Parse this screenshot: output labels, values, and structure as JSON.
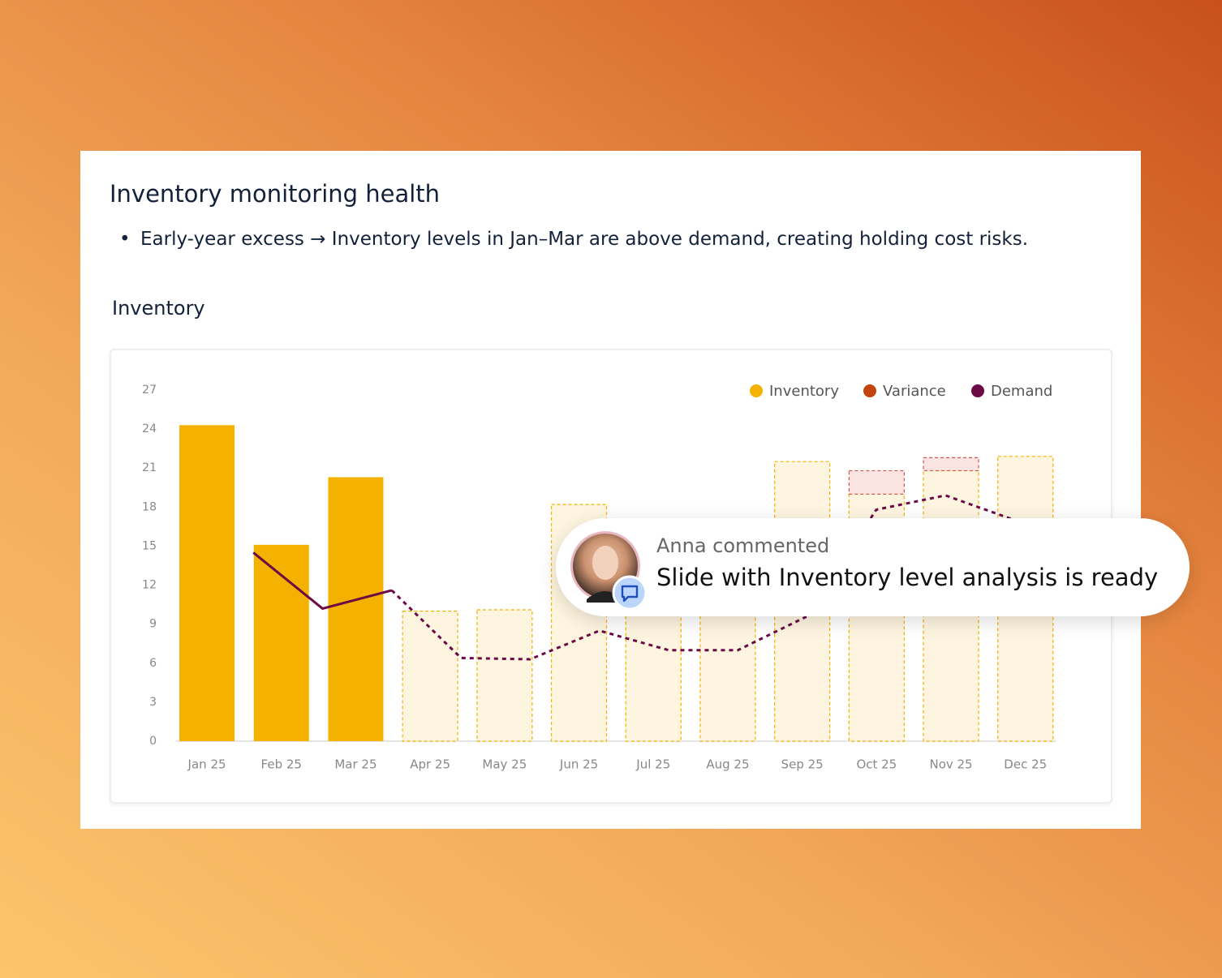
{
  "header": {
    "title": "Inventory monitoring health",
    "bullet": "Early-year excess → Inventory levels in Jan–Mar are above demand, creating holding cost risks."
  },
  "chart_data": {
    "type": "bar",
    "title": "Inventory",
    "categories": [
      "Jan 25",
      "Feb 25",
      "Mar 25",
      "Apr 25",
      "May 25",
      "Jun 25",
      "Jul 25",
      "Aug 25",
      "Sep 25",
      "Oct 25",
      "Nov 25",
      "Dec 25"
    ],
    "series": [
      {
        "name": "Inventory",
        "color": "#f5b100",
        "values": [
          24.3,
          15.1,
          20.3,
          10.0,
          10.1,
          18.2,
          14.0,
          14.0,
          21.5,
          19.0,
          20.8,
          21.9
        ]
      },
      {
        "name": "Variance",
        "color": "#c2440f",
        "values": [
          null,
          null,
          null,
          null,
          null,
          null,
          null,
          null,
          null,
          1.8,
          1.0,
          null
        ]
      },
      {
        "name": "Demand",
        "color": "#6b0a45",
        "type": "line",
        "values": [
          14.5,
          10.2,
          11.6,
          6.4,
          6.3,
          8.5,
          7.0,
          7.0,
          9.6,
          17.8,
          18.9,
          17.0
        ]
      }
    ],
    "forecast_start_index": 3,
    "ylim": [
      0,
      27
    ],
    "yticks": [
      0,
      3,
      6,
      9,
      12,
      15,
      18,
      21,
      24,
      27
    ],
    "grid": false,
    "legend": "top-right"
  },
  "comment": {
    "author": "Anna commented",
    "text": "Slide with Inventory level analysis is ready"
  }
}
